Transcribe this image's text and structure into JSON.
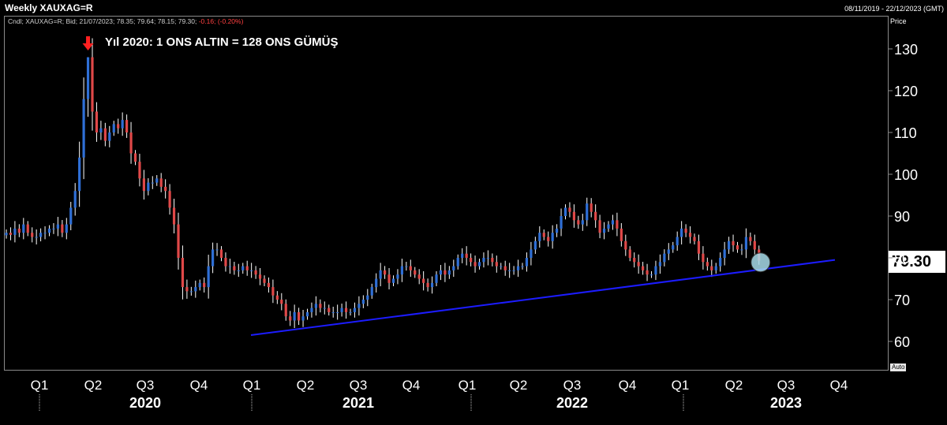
{
  "window": {
    "title": "Weekly XAUXAG=R",
    "date_range": "08/11/2019 - 22/12/2023 (GMT)"
  },
  "legend": {
    "prefix": "Cndl; XAUXAG=R; Bid; 21/07/2023; 78.35; 79.64; 78.15; 79.30;",
    "change": " -0.16; (-0.20%)"
  },
  "axis": {
    "price_label": "Price",
    "auto_label": "Auto"
  },
  "last_price": "79.30",
  "annotation": {
    "text": "Yıl 2020: 1 ONS ALTIN = 128 ONS GÜMÜŞ"
  },
  "colors": {
    "background": "#000000",
    "up_candle": "#2f6fd6",
    "down_candle": "#e04848",
    "wick": "#ffffff",
    "trendline": "#1c1cff",
    "arrow": "#ff2020",
    "highlight": "#a8dcea"
  },
  "chart_data": {
    "type": "candlestick",
    "title": "Weekly XAUXAG=R",
    "ylabel": "Price",
    "y_range": [
      55,
      136
    ],
    "y_ticks": [
      60,
      70,
      80,
      90,
      100,
      110,
      120,
      130
    ],
    "quarter_labels": [
      "Q1",
      "Q2",
      "Q3",
      "Q4",
      "Q1",
      "Q2",
      "Q3",
      "Q4",
      "Q1",
      "Q2",
      "Q3",
      "Q4",
      "Q1",
      "Q2",
      "Q3",
      "Q4"
    ],
    "year_labels": [
      "2020",
      "2021",
      "2022",
      "2023"
    ],
    "last_close": 79.3,
    "trendline": {
      "from": {
        "date": "2021-01-01",
        "value": 61.5
      },
      "to": {
        "date": "2023-09-30",
        "value": 79.5
      }
    },
    "weekly_closes": [
      86,
      85.5,
      87,
      86,
      88,
      86,
      85,
      85,
      86,
      86,
      87,
      87,
      88,
      86,
      88,
      92,
      96,
      104,
      118,
      128,
      115,
      110,
      111,
      108,
      110,
      112,
      111,
      113,
      110,
      105,
      103,
      99,
      96,
      98,
      98,
      99,
      97,
      96,
      92,
      88,
      80,
      73,
      72,
      72,
      73,
      74,
      73,
      78,
      82,
      82,
      80,
      78,
      78,
      77,
      77,
      78,
      77,
      77,
      76,
      75,
      74,
      73,
      71,
      70,
      69,
      66,
      65,
      67,
      65,
      66,
      67,
      68,
      69,
      68,
      68,
      67,
      67,
      67,
      68,
      67,
      67,
      68,
      69,
      70,
      71,
      73,
      75,
      77,
      76,
      74,
      75,
      76,
      78,
      78,
      77,
      76,
      75,
      74,
      73,
      74,
      76,
      77,
      76,
      77,
      78,
      80,
      81,
      80,
      79,
      78,
      79,
      80,
      80,
      79,
      78,
      78,
      77,
      77,
      77,
      78,
      78,
      80,
      82,
      84,
      86,
      85,
      84,
      86,
      87,
      90,
      92,
      91,
      89,
      88,
      89,
      93,
      91,
      89,
      86,
      87,
      88,
      89,
      87,
      84,
      82,
      80,
      79,
      78,
      77,
      76,
      76,
      78,
      79,
      81,
      82,
      83,
      85,
      87,
      86,
      85,
      84,
      81,
      79,
      78,
      77,
      78,
      80,
      82,
      84,
      83,
      82,
      82,
      85,
      84,
      82,
      79.3
    ]
  }
}
